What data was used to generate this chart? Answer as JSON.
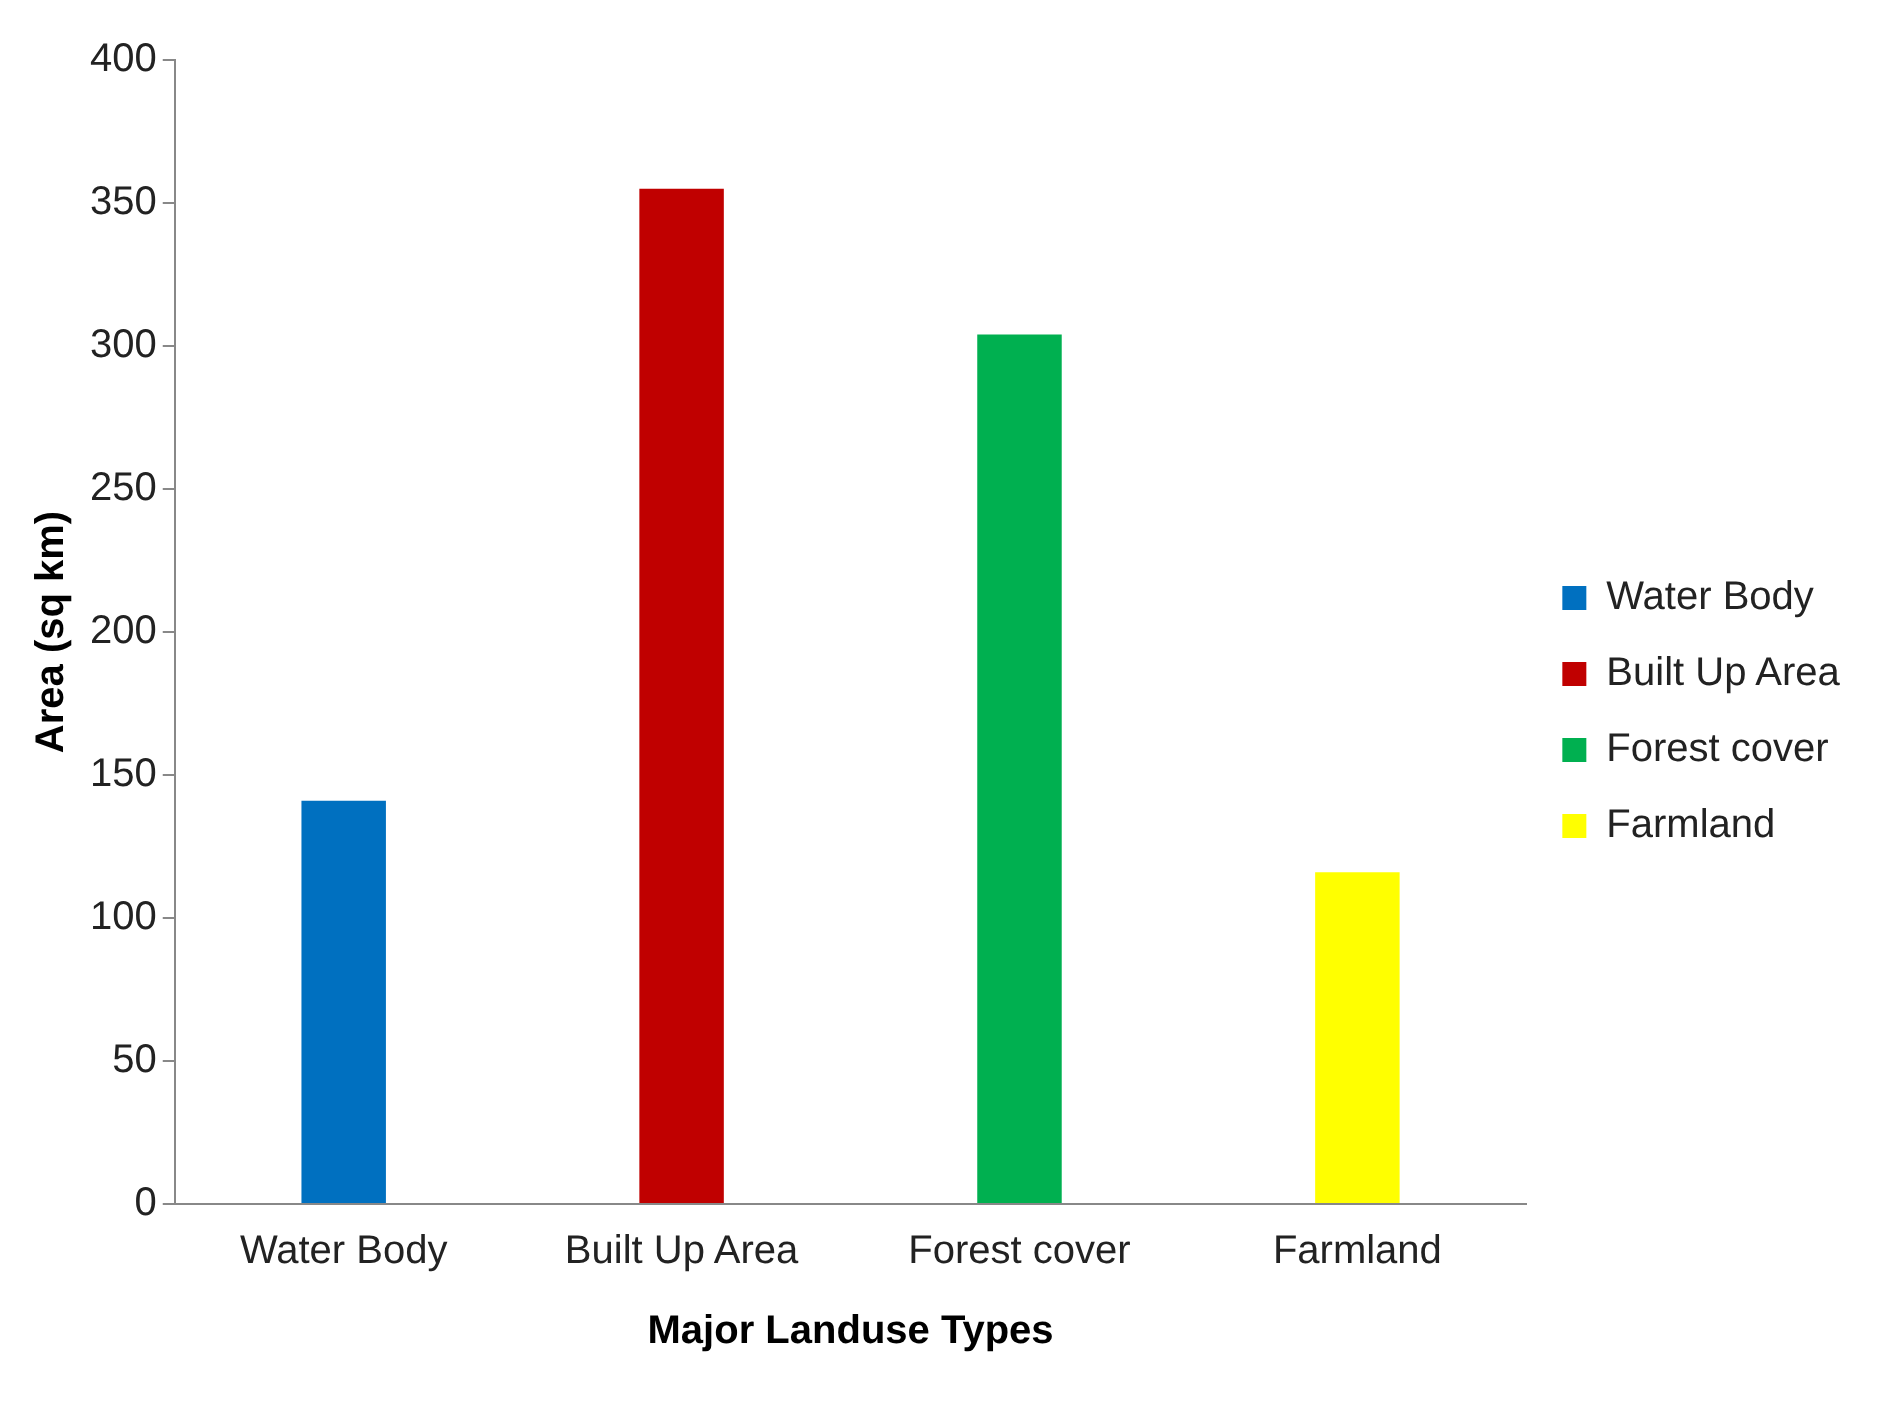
{
  "chart_data": {
    "type": "bar",
    "xlabel": "Major Landuse Types",
    "ylabel": "Area (sq km)",
    "categories": [
      "Water Body",
      "Built Up Area",
      "Forest cover",
      "Farmland"
    ],
    "series": [
      {
        "name": "Water Body",
        "color": "#0070c0",
        "values": [
          141,
          null,
          null,
          null
        ]
      },
      {
        "name": "Built Up Area",
        "color": "#c00000",
        "values": [
          null,
          355,
          null,
          null
        ]
      },
      {
        "name": "Forest cover",
        "color": "#00b050",
        "values": [
          null,
          null,
          304,
          null
        ]
      },
      {
        "name": "Farmland",
        "color": "#ffff00",
        "values": [
          null,
          null,
          null,
          116
        ]
      }
    ],
    "ylim": [
      0,
      400
    ],
    "yticks": [
      0,
      50,
      100,
      150,
      200,
      250,
      300,
      350,
      400
    ],
    "grid": false,
    "legend": "right"
  }
}
